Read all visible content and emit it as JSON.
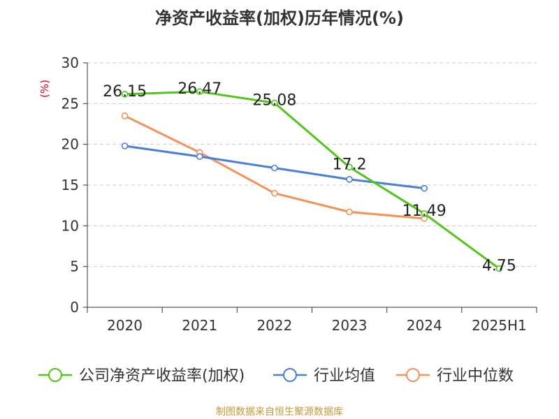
{
  "chart_data": {
    "type": "line",
    "title": "净资产收益率(加权)历年情况(%)",
    "y_unit_label": "(%)",
    "categories": [
      "2020",
      "2021",
      "2022",
      "2023",
      "2024",
      "2025H1"
    ],
    "ylim": [
      0,
      30
    ],
    "y_ticks": [
      "0",
      "5",
      "10",
      "15",
      "20",
      "25",
      "30"
    ],
    "grid": true,
    "legend_position": "bottom",
    "series": [
      {
        "name": "公司净资产收益率(加权)",
        "color": "#52c41a",
        "values": [
          26.15,
          26.47,
          25.08,
          17.2,
          11.49,
          4.75
        ],
        "labels": [
          "26.15",
          "26.47",
          "25.08",
          "17.2",
          "11.49",
          "4.75"
        ]
      },
      {
        "name": "行业均值",
        "color": "#4a7fd8",
        "values": [
          19.8,
          18.5,
          17.1,
          15.7,
          14.6,
          null
        ]
      },
      {
        "name": "行业中位数",
        "color": "#f5915a",
        "values": [
          23.5,
          19.0,
          14.0,
          11.7,
          10.9,
          null
        ]
      }
    ]
  },
  "footer": {
    "source": "制图数据来自恒生聚源数据库"
  }
}
